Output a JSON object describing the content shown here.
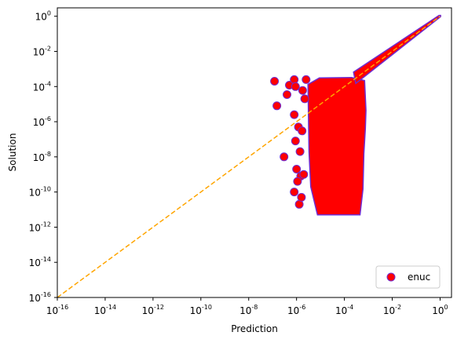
{
  "chart_data": {
    "type": "scatter",
    "xlabel": "Prediction",
    "ylabel": "Solution",
    "xscale": "log",
    "yscale": "log",
    "xlim": [
      1e-16,
      3
    ],
    "ylim": [
      1e-16,
      3
    ],
    "grid": false,
    "legend_placement": "lower-right",
    "x_ticks": [
      {
        "exp": -16,
        "base": "10",
        "label": "-16"
      },
      {
        "exp": -14,
        "base": "10",
        "label": "-14"
      },
      {
        "exp": -12,
        "base": "10",
        "label": "-12"
      },
      {
        "exp": -10,
        "base": "10",
        "label": "-10"
      },
      {
        "exp": -8,
        "base": "10",
        "label": "-8"
      },
      {
        "exp": -6,
        "base": "10",
        "label": "-6"
      },
      {
        "exp": -4,
        "base": "10",
        "label": "-4"
      },
      {
        "exp": -2,
        "base": "10",
        "label": "-2"
      },
      {
        "exp": 0,
        "base": "10",
        "label": "0"
      }
    ],
    "y_ticks": [
      {
        "exp": -16,
        "base": "10",
        "label": "-16"
      },
      {
        "exp": -14,
        "base": "10",
        "label": "-14"
      },
      {
        "exp": -12,
        "base": "10",
        "label": "-12"
      },
      {
        "exp": -10,
        "base": "10",
        "label": "-10"
      },
      {
        "exp": -8,
        "base": "10",
        "label": "-8"
      },
      {
        "exp": -6,
        "base": "10",
        "label": "-6"
      },
      {
        "exp": -4,
        "base": "10",
        "label": "-4"
      },
      {
        "exp": -2,
        "base": "10",
        "label": "-2"
      },
      {
        "exp": 0,
        "base": "10",
        "label": "0"
      }
    ],
    "series": [
      {
        "name": "enuc",
        "color": "#ff0000",
        "edge_color": "#6f2bd1",
        "marker": "circle",
        "points": [
          {
            "x": 1.2e-07,
            "y": 0.0002
          },
          {
            "x": 5e-07,
            "y": 0.00012
          },
          {
            "x": 8e-07,
            "y": 0.00025
          },
          {
            "x": 1.5e-07,
            "y": 8e-06
          },
          {
            "x": 4e-07,
            "y": 3.5e-05
          },
          {
            "x": 9e-07,
            "y": 0.0001
          },
          {
            "x": 3e-07,
            "y": 1e-08
          },
          {
            "x": 9e-07,
            "y": 8e-08
          },
          {
            "x": 1.2e-06,
            "y": 5e-07
          },
          {
            "x": 8e-07,
            "y": 2.5e-06
          },
          {
            "x": 1e-06,
            "y": 2e-09
          },
          {
            "x": 1.5e-06,
            "y": 8e-10
          },
          {
            "x": 8e-07,
            "y": 1e-10
          },
          {
            "x": 1.3e-06,
            "y": 2e-11
          },
          {
            "x": 1.6e-06,
            "y": 5e-11
          },
          {
            "x": 2e-06,
            "y": 1e-09
          },
          {
            "x": 1.1e-06,
            "y": 4e-10
          },
          {
            "x": 1.4e-06,
            "y": 2e-08
          },
          {
            "x": 1.7e-06,
            "y": 3e-07
          },
          {
            "x": 2.2e-06,
            "y": 2e-05
          },
          {
            "x": 1.8e-06,
            "y": 6e-05
          },
          {
            "x": 2.5e-06,
            "y": 0.00025
          }
        ]
      }
    ],
    "dense_band": {
      "x_range": [
        3e-06,
        0.0005
      ],
      "y_min": 5e-12,
      "y_max_lower": 0.00022,
      "outline_color": "#6f2bd1",
      "fill_color": "#ff0000"
    },
    "upper_arm": {
      "x_range": [
        0.0003,
        1.0
      ],
      "note_y_equals_x": true
    },
    "reference_line": {
      "color": "#ffa500",
      "style": "dashed",
      "from": [
        1e-16,
        1e-16
      ],
      "to": [
        1.0,
        1.0
      ]
    },
    "legend": {
      "entries": [
        {
          "label": "enuc",
          "marker_color": "#ff0000",
          "marker_edge": "#6f2bd1"
        }
      ]
    }
  }
}
